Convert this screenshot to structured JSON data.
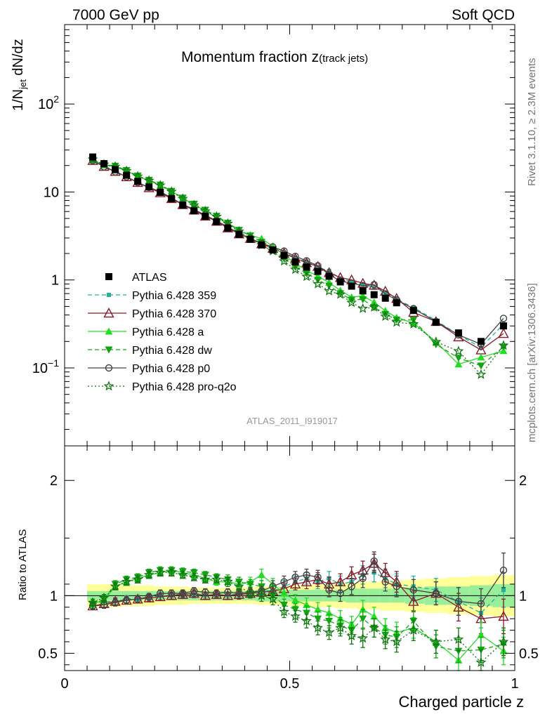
{
  "header": {
    "left": "7000 GeV pp",
    "right": "Soft QCD"
  },
  "side_labels": {
    "rivet": "Rivet 3.1.10, ≥ 2.3M events",
    "mcplots": "mcplots.cern.ch [arXiv:1306.3436]"
  },
  "analysis_id": "ATLAS_2011_I919017",
  "chart_data": {
    "type": "line",
    "title_main": "Momentum fraction z",
    "title_sub": "(track jets)",
    "ylabel_main": "1/N",
    "ylabel_sub": "jet",
    "ylabel_tail": " dN/dz",
    "ylabel_ratio": "Ratio to ATLAS",
    "xlabel": "Charged particle z",
    "xlim": [
      0,
      1
    ],
    "ylim_main": [
      0.013,
      800
    ],
    "ylim_ratio": [
      0.35,
      2.3
    ],
    "yscale_main": "log",
    "x_ticks": [
      {
        "value": 0,
        "label": "0"
      },
      {
        "value": 0.5,
        "label": "0.5"
      },
      {
        "value": 1,
        "label": "1"
      }
    ],
    "y_ticks_main": [
      {
        "value": 0.1,
        "label": "10",
        "exp": "−1"
      },
      {
        "value": 1,
        "label": "1",
        "exp": ""
      },
      {
        "value": 10,
        "label": "10",
        "exp": ""
      },
      {
        "value": 100,
        "label": "10",
        "exp": "2"
      }
    ],
    "y_ticks_ratio": [
      {
        "value": 0.5,
        "label": "0.5"
      },
      {
        "value": 1,
        "label": "1"
      },
      {
        "value": 2,
        "label": "2"
      }
    ],
    "legend_position": "center-left",
    "x": [
      0.0625,
      0.0875,
      0.1125,
      0.1375,
      0.1625,
      0.1875,
      0.2125,
      0.2375,
      0.2625,
      0.2875,
      0.3125,
      0.3375,
      0.3625,
      0.3875,
      0.4125,
      0.4375,
      0.4625,
      0.4875,
      0.5125,
      0.5375,
      0.5625,
      0.5875,
      0.6125,
      0.6375,
      0.6625,
      0.6875,
      0.7125,
      0.7375,
      0.775,
      0.825,
      0.875,
      0.925,
      0.975
    ],
    "atlas": [
      25,
      21,
      18,
      15.5,
      13.2,
      11.4,
      9.9,
      8.4,
      7.1,
      6.1,
      5.3,
      4.6,
      3.9,
      3.3,
      2.9,
      2.5,
      2.2,
      1.9,
      1.6,
      1.4,
      1.25,
      1.1,
      0.95,
      0.85,
      0.75,
      0.68,
      0.62,
      0.55,
      0.45,
      0.33,
      0.25,
      0.2,
      0.3
    ],
    "atlas_err_stat": [
      0.04,
      0.04,
      0.04,
      0.04,
      0.04,
      0.04,
      0.04,
      0.04,
      0.04,
      0.04,
      0.04,
      0.04,
      0.04,
      0.04,
      0.04,
      0.05,
      0.05,
      0.05,
      0.05,
      0.05,
      0.05,
      0.05,
      0.05,
      0.06,
      0.06,
      0.06,
      0.06,
      0.06,
      0.07,
      0.08,
      0.08,
      0.09,
      0.1
    ],
    "atlas_err_total": [
      0.1,
      0.1,
      0.1,
      0.09,
      0.09,
      0.09,
      0.08,
      0.08,
      0.08,
      0.07,
      0.07,
      0.07,
      0.07,
      0.07,
      0.07,
      0.08,
      0.08,
      0.08,
      0.09,
      0.09,
      0.1,
      0.1,
      0.11,
      0.11,
      0.12,
      0.12,
      0.13,
      0.13,
      0.14,
      0.15,
      0.16,
      0.17,
      0.18
    ],
    "series": [
      {
        "name": "Pythia 6.428 359",
        "color": "#21b299",
        "dash": "6,4",
        "marker": "square-small",
        "ratio": [
          0.92,
          0.95,
          0.95,
          0.97,
          0.97,
          0.98,
          1.0,
          1.0,
          1.02,
          1.01,
          1.0,
          1.01,
          1.0,
          1.02,
          1.03,
          1.05,
          1.04,
          1.08,
          1.12,
          1.15,
          1.12,
          1.15,
          1.1,
          1.12,
          1.18,
          1.2,
          1.15,
          1.1,
          1.08,
          1.05,
          0.95,
          0.85,
          1.05
        ],
        "err": [
          0.03,
          0.03,
          0.03,
          0.03,
          0.03,
          0.03,
          0.03,
          0.03,
          0.03,
          0.03,
          0.03,
          0.03,
          0.03,
          0.04,
          0.04,
          0.04,
          0.05,
          0.05,
          0.05,
          0.05,
          0.06,
          0.06,
          0.07,
          0.07,
          0.08,
          0.08,
          0.08,
          0.09,
          0.09,
          0.1,
          0.12,
          0.13,
          0.15
        ]
      },
      {
        "name": "Pythia 6.428 370",
        "color": "#8b1a2b",
        "dash": "",
        "marker": "triangle-open",
        "ratio": [
          0.91,
          0.93,
          0.95,
          0.96,
          0.97,
          0.98,
          0.99,
          1.0,
          1.01,
          1.02,
          1.0,
          1.01,
          1.0,
          1.01,
          1.02,
          1.03,
          1.04,
          1.06,
          1.1,
          1.12,
          1.14,
          1.1,
          1.12,
          1.18,
          1.22,
          1.28,
          1.2,
          1.12,
          0.95,
          1.02,
          0.9,
          0.8,
          0.82
        ],
        "err": [
          0.03,
          0.03,
          0.03,
          0.03,
          0.03,
          0.03,
          0.03,
          0.03,
          0.03,
          0.03,
          0.03,
          0.03,
          0.03,
          0.04,
          0.04,
          0.04,
          0.05,
          0.05,
          0.05,
          0.06,
          0.06,
          0.06,
          0.07,
          0.07,
          0.08,
          0.08,
          0.08,
          0.09,
          0.09,
          0.1,
          0.12,
          0.13,
          0.15
        ]
      },
      {
        "name": "Pythia 6.428 a",
        "color": "#22dd22",
        "dash": "",
        "marker": "triangle-filled",
        "ratio": [
          0.93,
          0.96,
          1.08,
          1.12,
          1.15,
          1.18,
          1.2,
          1.22,
          1.2,
          1.18,
          1.15,
          1.12,
          1.12,
          1.1,
          1.12,
          1.18,
          1.1,
          1.02,
          0.96,
          0.92,
          0.88,
          0.85,
          0.8,
          0.75,
          0.88,
          0.82,
          0.72,
          0.68,
          0.72,
          0.6,
          0.44,
          0.66,
          0.52
        ],
        "err": [
          0.03,
          0.03,
          0.03,
          0.03,
          0.03,
          0.03,
          0.03,
          0.03,
          0.03,
          0.03,
          0.03,
          0.03,
          0.04,
          0.04,
          0.04,
          0.05,
          0.05,
          0.05,
          0.05,
          0.06,
          0.06,
          0.06,
          0.07,
          0.07,
          0.08,
          0.08,
          0.08,
          0.09,
          0.09,
          0.1,
          0.1,
          0.11,
          0.12
        ]
      },
      {
        "name": "Pythia 6.428 dw",
        "color": "#11a611",
        "dash": "6,4",
        "marker": "triangle-down-filled",
        "ratio": [
          0.92,
          0.97,
          1.1,
          1.14,
          1.16,
          1.2,
          1.22,
          1.22,
          1.21,
          1.2,
          1.18,
          1.16,
          1.14,
          1.12,
          1.1,
          1.08,
          1.0,
          0.92,
          0.88,
          0.85,
          0.8,
          0.78,
          0.74,
          0.7,
          0.8,
          0.72,
          0.66,
          0.64,
          0.78,
          0.56,
          0.52,
          0.53,
          0.58
        ],
        "err": [
          0.03,
          0.03,
          0.03,
          0.03,
          0.03,
          0.03,
          0.03,
          0.03,
          0.03,
          0.03,
          0.03,
          0.03,
          0.04,
          0.04,
          0.04,
          0.05,
          0.05,
          0.05,
          0.05,
          0.06,
          0.06,
          0.06,
          0.07,
          0.07,
          0.08,
          0.08,
          0.08,
          0.09,
          0.09,
          0.1,
          0.1,
          0.11,
          0.12
        ]
      },
      {
        "name": "Pythia 6.428 p0",
        "color": "#444444",
        "dash": "",
        "marker": "circle-open",
        "ratio": [
          0.91,
          0.92,
          0.94,
          0.96,
          0.97,
          0.99,
          1.02,
          1.02,
          1.02,
          1.04,
          1.03,
          1.02,
          1.03,
          1.02,
          1.03,
          1.04,
          1.08,
          1.12,
          1.16,
          1.18,
          1.16,
          1.05,
          1.02,
          1.08,
          1.15,
          1.3,
          1.12,
          1.08,
          1.05,
          1.02,
          0.95,
          0.93,
          1.22
        ],
        "err": [
          0.03,
          0.03,
          0.03,
          0.03,
          0.03,
          0.03,
          0.03,
          0.03,
          0.03,
          0.03,
          0.03,
          0.03,
          0.03,
          0.04,
          0.04,
          0.04,
          0.05,
          0.05,
          0.05,
          0.05,
          0.06,
          0.06,
          0.07,
          0.07,
          0.08,
          0.08,
          0.08,
          0.09,
          0.09,
          0.1,
          0.12,
          0.13,
          0.15
        ]
      },
      {
        "name": "Pythia 6.428 pro-q2o",
        "color": "#117711",
        "dash": "2,3",
        "marker": "star",
        "ratio": [
          0.94,
          0.98,
          1.08,
          1.12,
          1.14,
          1.18,
          1.2,
          1.2,
          1.18,
          1.16,
          1.14,
          1.14,
          1.12,
          1.08,
          1.02,
          1.0,
          0.97,
          0.86,
          0.82,
          0.78,
          0.72,
          0.68,
          0.72,
          0.65,
          0.63,
          0.72,
          0.62,
          0.6,
          0.7,
          0.6,
          0.62,
          0.42,
          0.6
        ],
        "err": [
          0.03,
          0.03,
          0.03,
          0.03,
          0.03,
          0.03,
          0.03,
          0.03,
          0.03,
          0.03,
          0.03,
          0.03,
          0.04,
          0.04,
          0.04,
          0.05,
          0.05,
          0.05,
          0.05,
          0.06,
          0.06,
          0.06,
          0.07,
          0.07,
          0.08,
          0.08,
          0.08,
          0.09,
          0.09,
          0.1,
          0.1,
          0.11,
          0.12
        ]
      }
    ]
  }
}
